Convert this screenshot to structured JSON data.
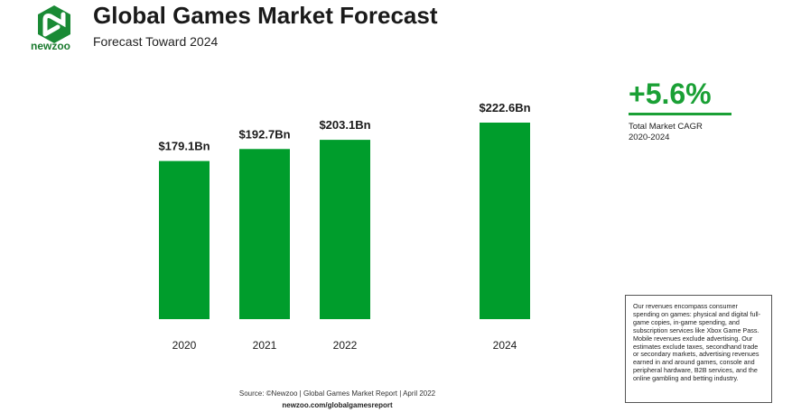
{
  "brand": {
    "name": "newzoo",
    "color": "#1aa035"
  },
  "header": {
    "title": "Global Games Market Forecast",
    "subtitle": "Forecast Toward 2024"
  },
  "cagr": {
    "value": "+5.6%",
    "label_line1": "Total Market CAGR",
    "label_line2": "2020-2024"
  },
  "note": "Our revenues encompass consumer spending on games: physical and digital full-game copies, in-game spending, and subscription services like Xbox Game Pass. Mobile revenues exclude advertising. Our estimates exclude taxes, secondhand trade or secondary markets, advertising revenues earned in and around games, console and peripheral hardware, B2B services, and the online gambling and betting industry.",
  "source": {
    "text": "Source: ©Newzoo | Global Games Market Report | April 2022",
    "url": "newzoo.com/globalgamesreport"
  },
  "chart_data": {
    "type": "bar",
    "categories": [
      "2020",
      "2021",
      "2022",
      "2024"
    ],
    "values": [
      179.1,
      192.7,
      203.1,
      222.6
    ],
    "labels": [
      "$179.1Bn",
      "$192.7Bn",
      "$203.1Bn",
      "$222.6Bn"
    ],
    "bar_color": "#009d2c",
    "ylim": [
      0,
      222.6
    ],
    "grid": false,
    "legend": "none"
  }
}
